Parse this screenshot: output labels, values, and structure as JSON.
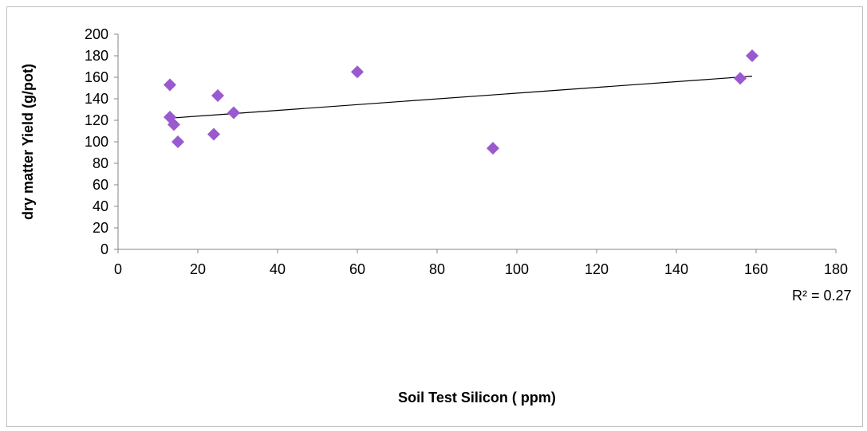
{
  "chart_data": {
    "type": "scatter",
    "title": "",
    "xlabel": "Soil Test Silicon ( ppm)",
    "ylabel": "dry matter Yield (g/pot)",
    "xlim": [
      0,
      180
    ],
    "ylim": [
      0,
      200
    ],
    "x_ticks": [
      0,
      20,
      40,
      60,
      80,
      100,
      120,
      140,
      160,
      180
    ],
    "y_ticks": [
      0,
      20,
      40,
      60,
      80,
      100,
      120,
      140,
      160,
      180,
      200
    ],
    "grid": false,
    "legend": "none",
    "marker": "diamond",
    "marker_color": "#9b59d0",
    "points": [
      {
        "x": 13,
        "y": 153
      },
      {
        "x": 13,
        "y": 123
      },
      {
        "x": 14,
        "y": 116
      },
      {
        "x": 15,
        "y": 100
      },
      {
        "x": 24,
        "y": 107
      },
      {
        "x": 25,
        "y": 143
      },
      {
        "x": 29,
        "y": 127
      },
      {
        "x": 60,
        "y": 165
      },
      {
        "x": 94,
        "y": 94
      },
      {
        "x": 156,
        "y": 159
      },
      {
        "x": 159,
        "y": 180
      }
    ],
    "trendline": {
      "type": "linear",
      "start": {
        "x": 13,
        "y": 122
      },
      "end": {
        "x": 159,
        "y": 161
      },
      "color": "#000000"
    },
    "annotation": "R² = 0.27"
  }
}
